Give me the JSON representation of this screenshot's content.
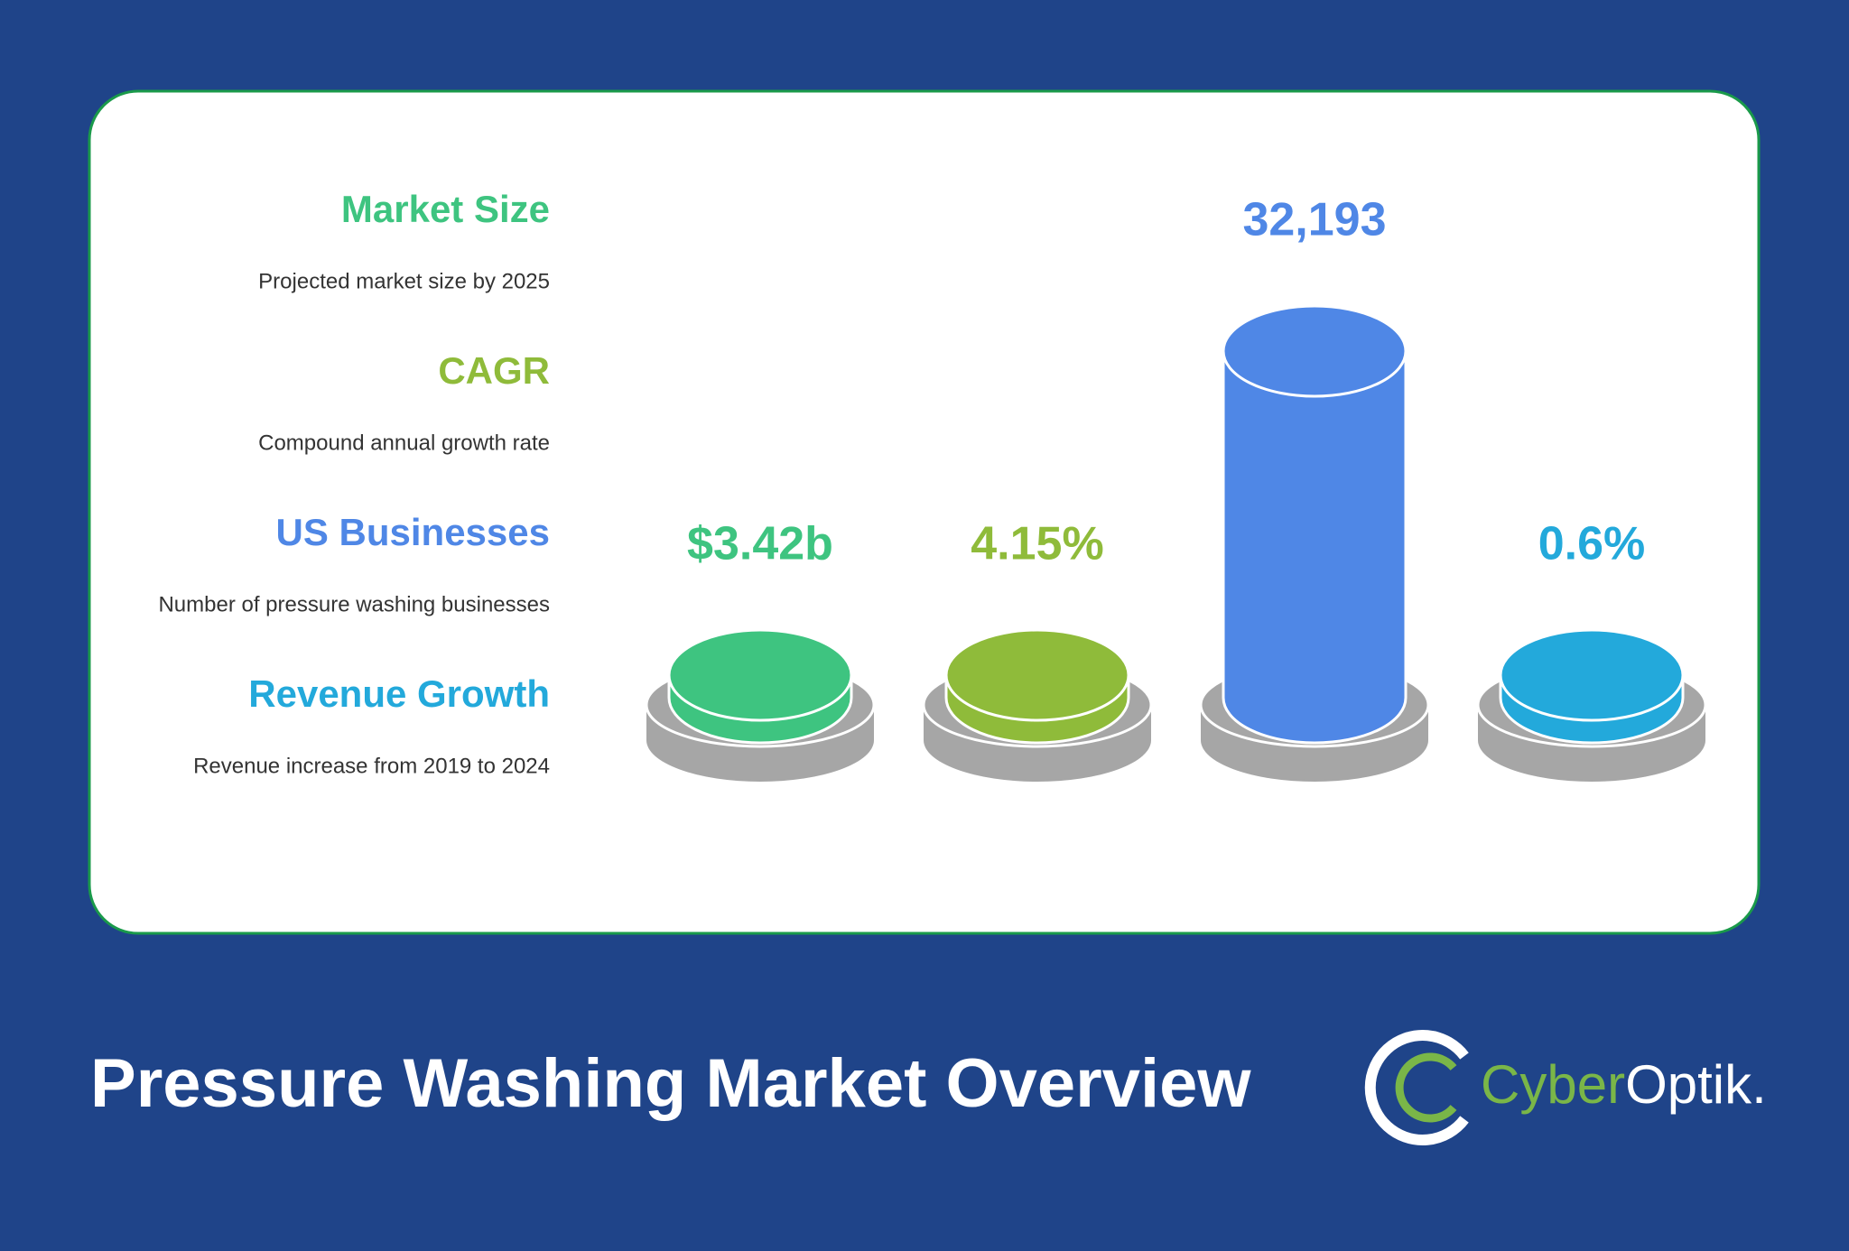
{
  "title": "Pressure Washing Market Overview",
  "items": [
    {
      "label": "Market Size",
      "description": "Projected market size by 2025",
      "value": "$3.42b",
      "color": "#3ec480"
    },
    {
      "label": "CAGR",
      "description": "Compound annual growth rate",
      "value": "4.15%",
      "color": "#8fbb3a"
    },
    {
      "label": "US Businesses",
      "description": "Number of pressure washing businesses",
      "value": "32,193",
      "color": "#4f87e6"
    },
    {
      "label": "Revenue Growth",
      "description": "Revenue increase from 2019 to 2024",
      "value": "0.6%",
      "color": "#23a9db"
    }
  ],
  "logo": {
    "part1": "Cyber",
    "part2": "Optik."
  }
}
